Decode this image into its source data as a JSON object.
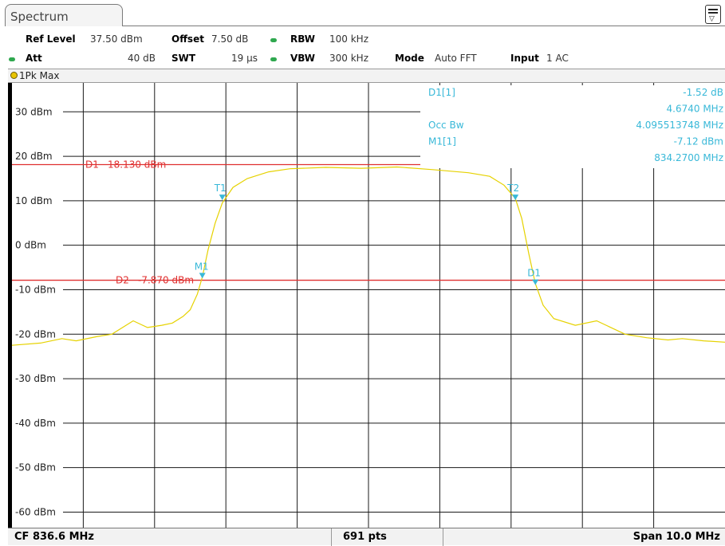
{
  "tab": {
    "title": "Spectrum"
  },
  "header": {
    "ref_level_label": "Ref Level",
    "ref_level_value": "37.50 dBm",
    "offset_label": "Offset",
    "offset_value": "7.50 dB",
    "rbw_label": "RBW",
    "rbw_value": "100 kHz",
    "att_label": "Att",
    "att_value": "40 dB",
    "swt_label": "SWT",
    "swt_value": "19 µs",
    "vbw_label": "VBW",
    "vbw_value": "300 kHz",
    "mode_label": "Mode",
    "mode_value": "Auto FFT",
    "input_label": "Input",
    "input_value": "1 AC",
    "indicator_color": "#2fa84f"
  },
  "trace_label": "1Pk Max",
  "footer": {
    "center_freq": "CF 836.6 MHz",
    "points": "691 pts",
    "span": "Span 10.0 MHz"
  },
  "marker_info": [
    {
      "label": "D1[1]",
      "value": "-1.52 dB"
    },
    {
      "label": "",
      "value": "4.6740 MHz"
    },
    {
      "label": "Occ Bw",
      "value": "4.095513748 MHz"
    },
    {
      "label": "M1[1]",
      "value": "-7.12 dBm"
    },
    {
      "label": "",
      "value": "834.2700 MHz"
    }
  ],
  "chart_data": {
    "type": "line",
    "center_mhz": 836.6,
    "span_mhz": 10.0,
    "points": 691,
    "ylim": [
      -63.5,
      36.5
    ],
    "yticks": [
      30,
      20,
      10,
      0,
      -10,
      -20,
      -30,
      -40,
      -50,
      -60
    ],
    "ytick_labels": [
      "30 dBm",
      "20 dBm",
      "10 dBm",
      "0 dBm",
      "-10 dBm",
      "-20 dBm",
      "-30 dBm",
      "-40 dBm",
      "-50 dBm",
      "-60 dBm"
    ],
    "grid": true,
    "trace_color": "#e6d200",
    "display_lines": [
      {
        "label": "D1",
        "value_label": "18.130 dBm",
        "level": 18.13,
        "color": "#e03030"
      },
      {
        "label": "D2",
        "value_label": "-7.870 dBm",
        "level": -7.87,
        "color": "#e03030"
      }
    ],
    "markers": [
      {
        "label": "M1",
        "x_mhz": 834.27,
        "y": -7.12,
        "color": "#38b8d8"
      },
      {
        "label": "T1",
        "x_mhz": 834.55,
        "y": 10.5,
        "color": "#38b8d8"
      },
      {
        "label": "T2",
        "x_mhz": 838.66,
        "y": 10.5,
        "color": "#38b8d8"
      },
      {
        "label": "D1",
        "x_mhz": 838.94,
        "y": -8.6,
        "color": "#38b8d8"
      }
    ],
    "series": [
      {
        "x_mhz": [
          831.6,
          832.0,
          832.3,
          832.5,
          832.8,
          833.0,
          833.3,
          833.5,
          833.7,
          833.85,
          834.0,
          834.1,
          834.2,
          834.27,
          834.35,
          834.45,
          834.55,
          834.7,
          834.9,
          835.2,
          835.5,
          836.0,
          836.5,
          837.0,
          837.5,
          838.0,
          838.3,
          838.5,
          838.66,
          838.75,
          838.85,
          838.94,
          839.05,
          839.2,
          839.5,
          839.8,
          840.2,
          840.5,
          840.8,
          841.0,
          841.3,
          841.6
        ],
        "values_dbm": [
          -22.5,
          -22.0,
          -21.0,
          -21.5,
          -20.5,
          -20.0,
          -17.0,
          -18.5,
          -18.0,
          -17.5,
          -16.0,
          -14.5,
          -11.0,
          -7.12,
          -1.0,
          5.0,
          9.5,
          13.0,
          15.0,
          16.5,
          17.2,
          17.5,
          17.3,
          17.6,
          17.0,
          16.3,
          15.5,
          13.5,
          10.5,
          6.0,
          -2.0,
          -8.6,
          -13.5,
          -16.5,
          -18.0,
          -17.0,
          -20.0,
          -20.8,
          -21.3,
          -21.0,
          -21.5,
          -21.8
        ]
      }
    ]
  }
}
